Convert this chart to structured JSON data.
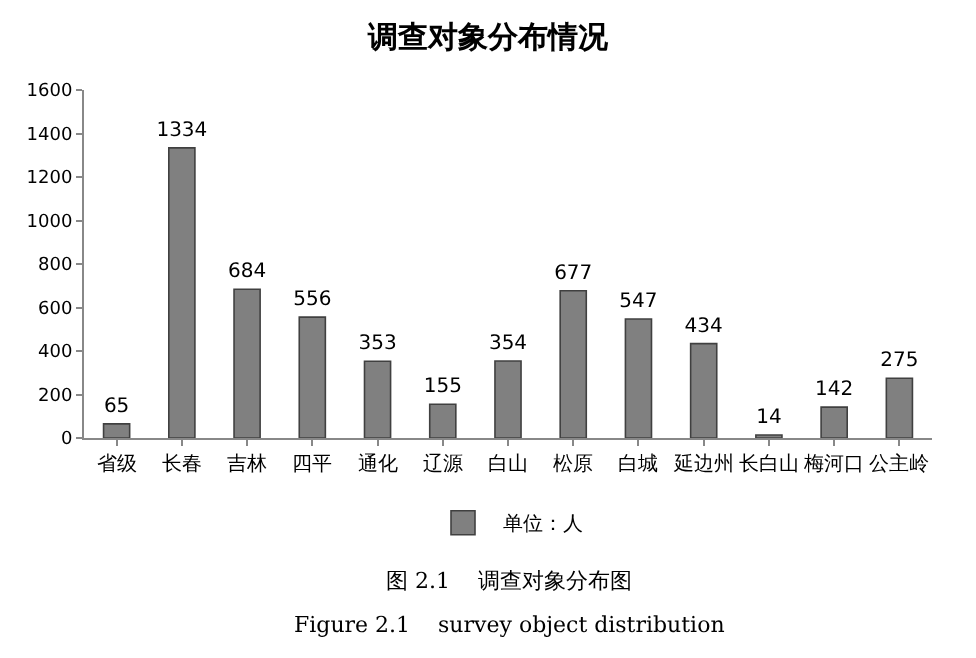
{
  "chart_data": {
    "type": "bar",
    "title": "调查对象分布情况",
    "categories": [
      "省级",
      "长春",
      "吉林",
      "四平",
      "通化",
      "辽源",
      "白山",
      "松原",
      "白城",
      "延边州",
      "长白山",
      "梅河口",
      "公主岭"
    ],
    "series": [
      {
        "name": "单位：人",
        "color": "#808080",
        "values": [
          65,
          1334,
          684,
          556,
          353,
          155,
          354,
          677,
          547,
          434,
          14,
          142,
          275
        ]
      }
    ],
    "ylim": [
      0,
      1600
    ],
    "yticks": [
      0,
      200,
      400,
      600,
      800,
      1000,
      1200,
      1400,
      1600
    ],
    "legend": "bottom",
    "data_labels": true,
    "annotations": [
      "图 2.1    调查对象分布图",
      "Figure 2.1    survey object distribution"
    ]
  }
}
